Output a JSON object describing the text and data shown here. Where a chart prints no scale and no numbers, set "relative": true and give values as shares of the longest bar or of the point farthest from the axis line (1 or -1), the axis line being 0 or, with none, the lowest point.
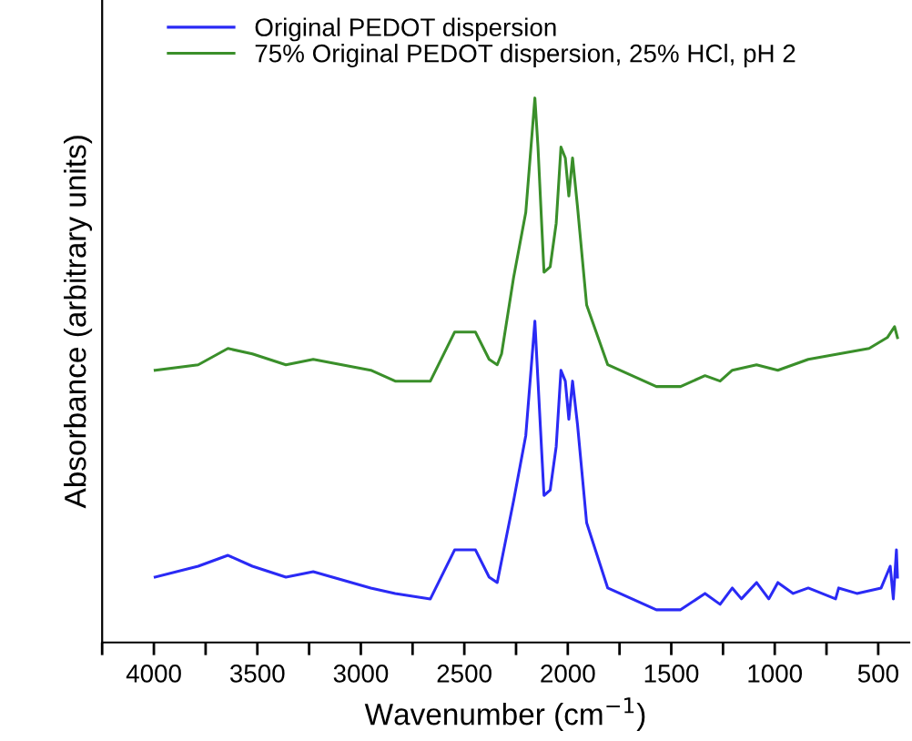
{
  "chart_data": {
    "type": "line",
    "xlabel": "Wavenumber (cm$^{−1}$)",
    "ylabel": "Absorbance (arbitrary units)",
    "relative": true,
    "legend": "top left",
    "grid": false,
    "marker": "none",
    "line_style": "solid",
    "xlim": [
      4250,
      350
    ],
    "xticks": [
      {
        "value": 4250,
        "label": null
      },
      4000,
      {
        "value": 3750,
        "label": null
      },
      3500,
      {
        "value": 3250,
        "label": null
      },
      3000,
      {
        "value": 2750,
        "label": null
      },
      2500,
      {
        "value": 2250,
        "label": null
      },
      2000,
      {
        "value": 1750,
        "label": null
      },
      1500,
      {
        "value": 1250,
        "label": null
      },
      1000,
      {
        "value": 750,
        "label": null
      },
      500
    ],
    "series": [
      {
        "name": "Original PEDOT dispersion",
        "color": "#2a2af5",
        "x": [
          3994,
          3786,
          3642,
          3524,
          3362,
          3230,
          2952,
          2834,
          2664,
          2547,
          2446,
          2380,
          2341,
          2262,
          2203,
          2182,
          2159,
          2144,
          2115,
          2085,
          2056,
          2033,
          2012,
          1995,
          1977,
          1953,
          1909,
          1807,
          1572,
          1455,
          1337,
          1264,
          1205,
          1161,
          1088,
          1029,
          985,
          911,
          838,
          706,
          691,
          603,
          486,
          442,
          427,
          412,
          407
        ],
        "values": [
          0.12,
          0.14,
          0.16,
          0.14,
          0.12,
          0.13,
          0.1,
          0.09,
          0.08,
          0.17,
          0.17,
          0.12,
          0.11,
          0.26,
          0.38,
          0.48,
          0.59,
          0.48,
          0.27,
          0.28,
          0.36,
          0.5,
          0.48,
          0.41,
          0.48,
          0.4,
          0.22,
          0.1,
          0.06,
          0.06,
          0.09,
          0.07,
          0.1,
          0.08,
          0.11,
          0.08,
          0.11,
          0.09,
          0.1,
          0.08,
          0.1,
          0.09,
          0.1,
          0.14,
          0.08,
          0.17,
          0.12
        ]
      },
      {
        "name": "75% Original PEDOT dispersion, 25% HCl, pH 2",
        "color": "#3a8f2a",
        "x": [
          3994,
          3786,
          3642,
          3524,
          3362,
          3230,
          2952,
          2834,
          2664,
          2547,
          2446,
          2380,
          2341,
          2320,
          2262,
          2203,
          2182,
          2159,
          2144,
          2115,
          2085,
          2056,
          2033,
          2012,
          1995,
          1977,
          1953,
          1909,
          1807,
          1572,
          1455,
          1337,
          1264,
          1205,
          1088,
          985,
          838,
          691,
          544,
          456,
          421,
          407
        ],
        "values": [
          0.5,
          0.51,
          0.54,
          0.53,
          0.51,
          0.52,
          0.5,
          0.48,
          0.48,
          0.57,
          0.57,
          0.52,
          0.51,
          0.53,
          0.67,
          0.79,
          0.89,
          1.0,
          0.91,
          0.68,
          0.69,
          0.77,
          0.91,
          0.89,
          0.82,
          0.89,
          0.8,
          0.62,
          0.51,
          0.47,
          0.47,
          0.49,
          0.48,
          0.5,
          0.51,
          0.5,
          0.52,
          0.53,
          0.54,
          0.56,
          0.58,
          0.56
        ]
      }
    ]
  }
}
